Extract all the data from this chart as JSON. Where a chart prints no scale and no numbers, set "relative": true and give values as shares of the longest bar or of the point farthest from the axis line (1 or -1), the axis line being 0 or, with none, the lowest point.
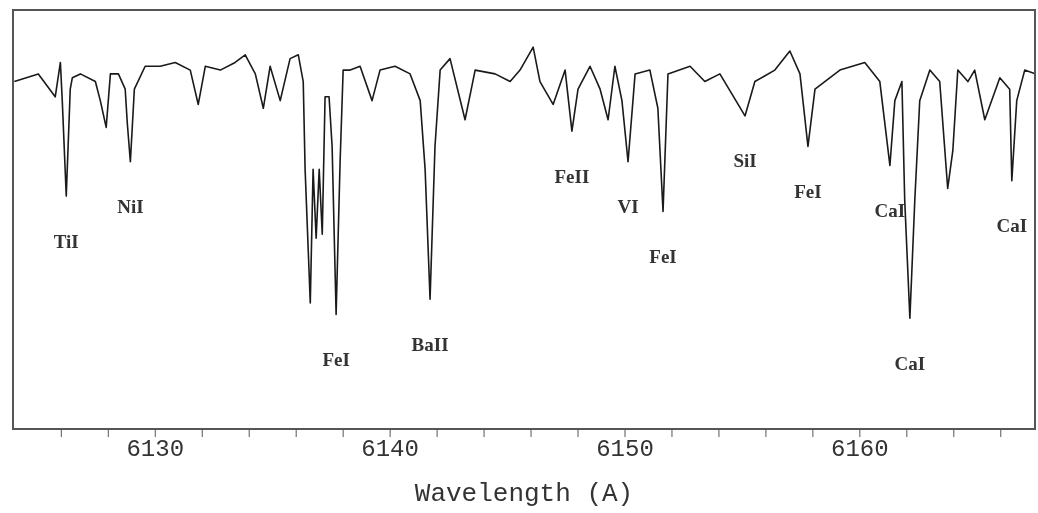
{
  "chart_data": {
    "type": "line",
    "xlabel": "Wavelength (A)",
    "relative": true,
    "tick_labels": "x",
    "color": "#1a1a1a",
    "xlim": [
      6123.9,
      6167.5
    ],
    "xticks": [
      {
        "value": 6126,
        "label": null
      },
      {
        "value": 6128,
        "label": null
      },
      6130,
      {
        "value": 6132,
        "label": null
      },
      {
        "value": 6134,
        "label": null
      },
      {
        "value": 6136,
        "label": null
      },
      {
        "value": 6138,
        "label": null
      },
      6140,
      {
        "value": 6142,
        "label": null
      },
      {
        "value": 6144,
        "label": null
      },
      {
        "value": 6146,
        "label": null
      },
      {
        "value": 6148,
        "label": null
      },
      6150,
      {
        "value": 6152,
        "label": null
      },
      {
        "value": 6154,
        "label": null
      },
      {
        "value": 6156,
        "label": null
      },
      {
        "value": 6158,
        "label": null
      },
      6160,
      {
        "value": 6162,
        "label": null
      },
      {
        "value": 6164,
        "label": null
      },
      {
        "value": 6166,
        "label": null
      }
    ],
    "x": [
      6124.0,
      6125.02,
      6125.74,
      6125.96,
      6126.04,
      6126.21,
      6126.38,
      6126.47,
      6126.81,
      6127.45,
      6127.66,
      6127.91,
      6128.09,
      6128.43,
      6128.72,
      6128.81,
      6128.94,
      6129.11,
      6129.57,
      6130.21,
      6130.85,
      6131.49,
      6131.83,
      6132.13,
      6132.77,
      6133.4,
      6133.83,
      6134.26,
      6134.6,
      6134.89,
      6135.32,
      6135.74,
      6136.09,
      6136.3,
      6136.38,
      6136.6,
      6136.72,
      6136.85,
      6136.98,
      6137.11,
      6137.23,
      6137.4,
      6137.53,
      6137.7,
      6137.87,
      6138.0,
      6138.3,
      6138.72,
      6139.23,
      6139.57,
      6140.21,
      6140.85,
      6141.28,
      6141.49,
      6141.7,
      6141.91,
      6142.13,
      6142.55,
      6143.19,
      6143.62,
      6144.47,
      6145.11,
      6145.53,
      6146.09,
      6146.38,
      6146.94,
      6147.45,
      6147.74,
      6148.0,
      6148.51,
      6148.94,
      6149.28,
      6149.57,
      6149.87,
      6150.13,
      6150.43,
      6151.06,
      6151.4,
      6151.62,
      6151.83,
      6152.77,
      6153.4,
      6154.04,
      6155.11,
      6155.53,
      6156.38,
      6157.02,
      6157.45,
      6157.79,
      6158.09,
      6159.15,
      6160.21,
      6160.85,
      6161.28,
      6161.49,
      6161.79,
      6161.91,
      6162.13,
      6162.34,
      6162.55,
      6162.98,
      6163.4,
      6163.74,
      6163.96,
      6164.17,
      6164.6,
      6164.89,
      6165.32,
      6165.96,
      6166.38,
      6166.47,
      6166.68,
      6167.02,
      6167.49
    ],
    "values": [
      0.91,
      0.93,
      0.87,
      0.96,
      0.86,
      0.61,
      0.89,
      0.92,
      0.93,
      0.91,
      0.86,
      0.79,
      0.93,
      0.93,
      0.89,
      0.8,
      0.7,
      0.89,
      0.95,
      0.95,
      0.96,
      0.94,
      0.85,
      0.95,
      0.94,
      0.96,
      0.98,
      0.93,
      0.84,
      0.95,
      0.86,
      0.97,
      0.98,
      0.91,
      0.68,
      0.33,
      0.68,
      0.5,
      0.68,
      0.51,
      0.87,
      0.87,
      0.74,
      0.3,
      0.7,
      0.94,
      0.94,
      0.95,
      0.86,
      0.94,
      0.95,
      0.93,
      0.86,
      0.68,
      0.34,
      0.74,
      0.94,
      0.97,
      0.81,
      0.94,
      0.93,
      0.91,
      0.94,
      1.0,
      0.91,
      0.85,
      0.94,
      0.78,
      0.89,
      0.95,
      0.89,
      0.81,
      0.95,
      0.86,
      0.7,
      0.93,
      0.94,
      0.84,
      0.57,
      0.93,
      0.95,
      0.91,
      0.93,
      0.82,
      0.91,
      0.94,
      0.99,
      0.93,
      0.74,
      0.89,
      0.94,
      0.96,
      0.91,
      0.69,
      0.86,
      0.91,
      0.6,
      0.29,
      0.6,
      0.86,
      0.94,
      0.91,
      0.63,
      0.73,
      0.94,
      0.91,
      0.94,
      0.81,
      0.92,
      0.89,
      0.65,
      0.86,
      0.94,
      0.93
    ],
    "annotations": [
      {
        "text": "TiI",
        "x": 6126.21,
        "y": 0.61
      },
      {
        "text": "NiI",
        "x": 6128.94,
        "y": 0.7
      },
      {
        "text": "FeI",
        "x": 6137.7,
        "y": 0.3
      },
      {
        "text": "BaII",
        "x": 6141.7,
        "y": 0.34
      },
      {
        "text": "FeII",
        "x": 6147.74,
        "y": 0.78
      },
      {
        "text": "VI",
        "x": 6150.13,
        "y": 0.7
      },
      {
        "text": "FeI",
        "x": 6151.62,
        "y": 0.57
      },
      {
        "text": "SiI",
        "x": 6155.11,
        "y": 0.82
      },
      {
        "text": "FeI",
        "x": 6157.79,
        "y": 0.74
      },
      {
        "text": "CaI",
        "x": 6161.28,
        "y": 0.69
      },
      {
        "text": "CaI",
        "x": 6162.13,
        "y": 0.29
      },
      {
        "text": "CaI",
        "x": 6166.47,
        "y": 0.65
      }
    ]
  }
}
